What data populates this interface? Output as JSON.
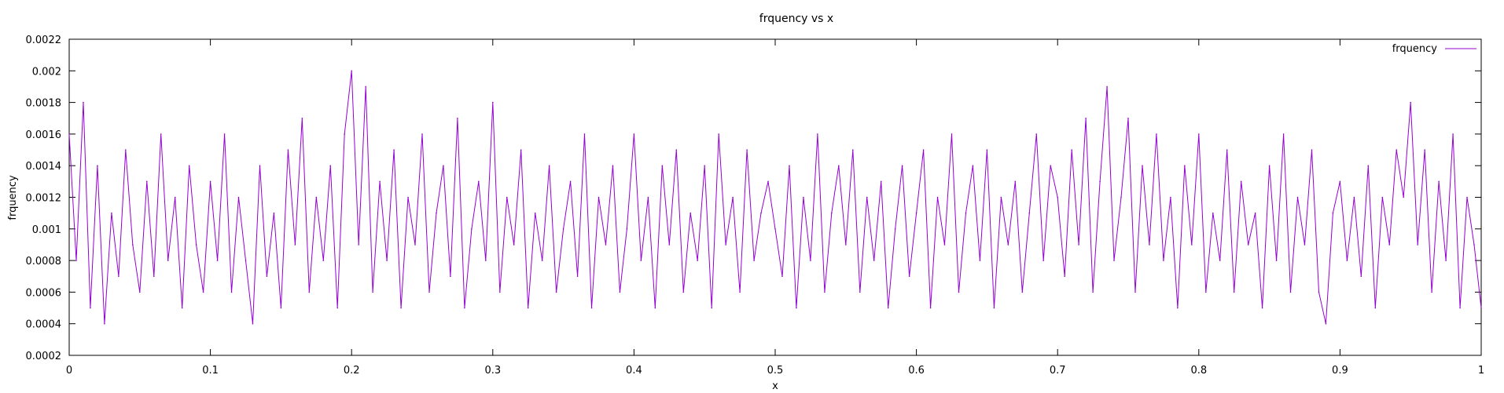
{
  "chart_data": {
    "type": "line",
    "title": "frquency vs x",
    "xlabel": "x",
    "ylabel": "frquency",
    "xlim": [
      0,
      1
    ],
    "ylim": [
      0.0002,
      0.0022
    ],
    "x_ticks": [
      "0",
      "0.1",
      "0.2",
      "0.3",
      "0.4",
      "0.5",
      "0.6",
      "0.7",
      "0.8",
      "0.9",
      "1"
    ],
    "y_ticks": [
      "0.0002",
      "0.0004",
      "0.0006",
      "0.0008",
      "0.001",
      "0.0012",
      "0.0014",
      "0.0016",
      "0.0018",
      "0.002",
      "0.0022"
    ],
    "grid": false,
    "legend_position": "top-right",
    "series": [
      {
        "name": "frquency",
        "color": "#9400d3",
        "x": [
          0,
          0.005,
          0.01,
          0.015,
          0.02,
          0.025,
          0.03,
          0.035,
          0.04,
          0.045,
          0.05,
          0.055,
          0.06,
          0.065,
          0.07,
          0.075,
          0.08,
          0.085,
          0.09,
          0.095,
          0.1,
          0.105,
          0.11,
          0.115,
          0.12,
          0.125,
          0.13,
          0.135,
          0.14,
          0.145,
          0.15,
          0.155,
          0.16,
          0.165,
          0.17,
          0.175,
          0.18,
          0.185,
          0.19,
          0.195,
          0.2,
          0.205,
          0.21,
          0.215,
          0.22,
          0.225,
          0.23,
          0.235,
          0.24,
          0.245,
          0.25,
          0.255,
          0.26,
          0.265,
          0.27,
          0.275,
          0.28,
          0.285,
          0.29,
          0.295,
          0.3,
          0.305,
          0.31,
          0.315,
          0.32,
          0.325,
          0.33,
          0.335,
          0.34,
          0.345,
          0.35,
          0.355,
          0.36,
          0.365,
          0.37,
          0.375,
          0.38,
          0.385,
          0.39,
          0.395,
          0.4,
          0.405,
          0.41,
          0.415,
          0.42,
          0.425,
          0.43,
          0.435,
          0.44,
          0.445,
          0.45,
          0.455,
          0.46,
          0.465,
          0.47,
          0.475,
          0.48,
          0.485,
          0.49,
          0.495,
          0.5,
          0.505,
          0.51,
          0.515,
          0.52,
          0.525,
          0.53,
          0.535,
          0.54,
          0.545,
          0.55,
          0.555,
          0.56,
          0.565,
          0.57,
          0.575,
          0.58,
          0.585,
          0.59,
          0.595,
          0.6,
          0.605,
          0.61,
          0.615,
          0.62,
          0.625,
          0.63,
          0.635,
          0.64,
          0.645,
          0.65,
          0.655,
          0.66,
          0.665,
          0.67,
          0.675,
          0.68,
          0.685,
          0.69,
          0.695,
          0.7,
          0.705,
          0.71,
          0.715,
          0.72,
          0.725,
          0.73,
          0.735,
          0.74,
          0.745,
          0.75,
          0.755,
          0.76,
          0.765,
          0.77,
          0.775,
          0.78,
          0.785,
          0.79,
          0.795,
          0.8,
          0.805,
          0.81,
          0.815,
          0.82,
          0.825,
          0.83,
          0.835,
          0.84,
          0.845,
          0.85,
          0.855,
          0.86,
          0.865,
          0.87,
          0.875,
          0.88,
          0.885,
          0.89,
          0.895,
          0.9,
          0.905,
          0.91,
          0.915,
          0.92,
          0.925,
          0.93,
          0.935,
          0.94,
          0.945,
          0.95,
          0.955,
          0.96,
          0.965,
          0.97,
          0.975,
          0.98,
          0.985,
          0.99,
          0.995,
          1
        ],
        "values": [
          0.0016,
          0.0008,
          0.0018,
          0.0005,
          0.0014,
          0.0004,
          0.0011,
          0.0007,
          0.0015,
          0.0009,
          0.0006,
          0.0013,
          0.0007,
          0.0016,
          0.0008,
          0.0012,
          0.0005,
          0.0014,
          0.0009,
          0.0006,
          0.0013,
          0.0008,
          0.0016,
          0.0006,
          0.0012,
          0.0008,
          0.0004,
          0.0014,
          0.0007,
          0.0011,
          0.0005,
          0.0015,
          0.0009,
          0.0017,
          0.0006,
          0.0012,
          0.0008,
          0.0014,
          0.0005,
          0.0016,
          0.002,
          0.0009,
          0.0019,
          0.0006,
          0.0013,
          0.0008,
          0.0015,
          0.0005,
          0.0012,
          0.0009,
          0.0016,
          0.0006,
          0.0011,
          0.0014,
          0.0007,
          0.0017,
          0.0005,
          0.001,
          0.0013,
          0.0008,
          0.0018,
          0.0006,
          0.0012,
          0.0009,
          0.0015,
          0.0005,
          0.0011,
          0.0008,
          0.0014,
          0.0006,
          0.001,
          0.0013,
          0.0007,
          0.0016,
          0.0005,
          0.0012,
          0.0009,
          0.0014,
          0.0006,
          0.001,
          0.0016,
          0.0008,
          0.0012,
          0.0005,
          0.0014,
          0.0009,
          0.0015,
          0.0006,
          0.0011,
          0.0008,
          0.0014,
          0.0005,
          0.0016,
          0.0009,
          0.0012,
          0.0006,
          0.0015,
          0.0008,
          0.0011,
          0.0013,
          0.001,
          0.0007,
          0.0014,
          0.0005,
          0.0012,
          0.0008,
          0.0016,
          0.0006,
          0.0011,
          0.0014,
          0.0009,
          0.0015,
          0.0006,
          0.0012,
          0.0008,
          0.0013,
          0.0005,
          0.001,
          0.0014,
          0.0007,
          0.0011,
          0.0015,
          0.0005,
          0.0012,
          0.0009,
          0.0016,
          0.0006,
          0.0011,
          0.0014,
          0.0008,
          0.0015,
          0.0005,
          0.0012,
          0.0009,
          0.0013,
          0.0006,
          0.0011,
          0.0016,
          0.0008,
          0.0014,
          0.0012,
          0.0007,
          0.0015,
          0.0009,
          0.0017,
          0.0006,
          0.0013,
          0.0019,
          0.0008,
          0.0012,
          0.0017,
          0.0006,
          0.0014,
          0.0009,
          0.0016,
          0.0008,
          0.0012,
          0.0005,
          0.0014,
          0.0009,
          0.0016,
          0.0006,
          0.0011,
          0.0008,
          0.0015,
          0.0006,
          0.0013,
          0.0009,
          0.0011,
          0.0005,
          0.0014,
          0.0008,
          0.0016,
          0.0006,
          0.0012,
          0.0009,
          0.0015,
          0.0006,
          0.0004,
          0.0011,
          0.0013,
          0.0008,
          0.0012,
          0.0007,
          0.0014,
          0.0005,
          0.0012,
          0.0009,
          0.0015,
          0.0012,
          0.0018,
          0.0009,
          0.0015,
          0.0006,
          0.0013,
          0.0008,
          0.0016,
          0.0005,
          0.0012,
          0.0009,
          0.0005
        ]
      }
    ]
  }
}
